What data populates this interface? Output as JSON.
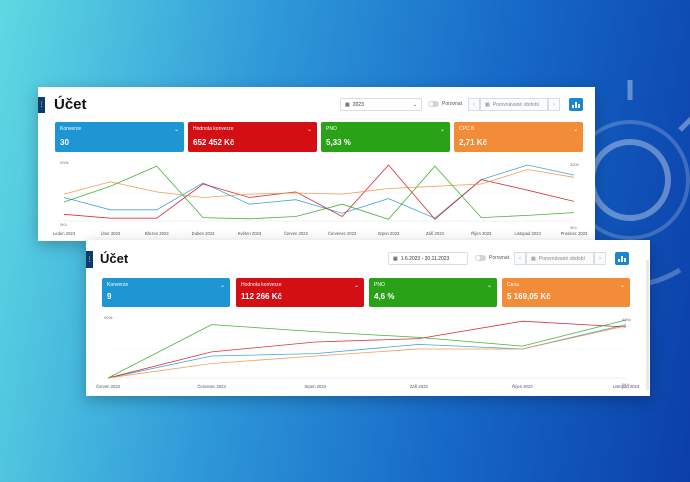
{
  "colors": {
    "blue": "#1d96d3",
    "red": "#d40f14",
    "green": "#2aa218",
    "orange": "#f28c38",
    "accent": "#1c86d6"
  },
  "panel_top": {
    "title": "Účet",
    "period_value": "2023",
    "compare_label": "Porovnat",
    "compare_placeholder": "Porovnávané období",
    "kpis": [
      {
        "label": "Konverze",
        "value": "30",
        "color": "blue"
      },
      {
        "label": "Hodnota konverze",
        "value": "652 452 Kč",
        "color": "red"
      },
      {
        "label": "PNO",
        "value": "5,33 %",
        "color": "green"
      },
      {
        "label": "CPC B",
        "value": "2,71 Kč",
        "color": "orange"
      }
    ],
    "chart_data": {
      "type": "line",
      "categories": [
        "Leden 2023",
        "Únor 2023",
        "Březen 2023",
        "Duben 2023",
        "Květen 2023",
        "Červen 2023",
        "Červenec 2023",
        "Srpen 2023",
        "Září 2023",
        "Říjen 2023",
        "Listopad 2023",
        "Prosinec 2023"
      ],
      "series": [
        {
          "color": "blue",
          "values": [
            0.42,
            0.2,
            0.2,
            0.68,
            0.3,
            0.38,
            0.14,
            0.4,
            0.05,
            0.74,
            1.0,
            0.82
          ]
        },
        {
          "color": "red",
          "values": [
            0.12,
            0.05,
            0.05,
            0.66,
            0.42,
            0.52,
            0.08,
            1.0,
            0.03,
            0.74,
            0.55,
            0.35
          ]
        },
        {
          "color": "green",
          "values": [
            0.34,
            0.62,
            0.98,
            0.06,
            0.04,
            0.08,
            0.3,
            0.03,
            0.98,
            0.06,
            0.1,
            0.15
          ]
        },
        {
          "color": "orange",
          "values": [
            0.48,
            0.7,
            0.52,
            0.42,
            0.48,
            0.5,
            0.48,
            0.58,
            0.62,
            0.66,
            0.92,
            0.78
          ]
        }
      ],
      "y_left_top": "900k",
      "y_left_bottom": "0Kč",
      "y_right_top": "3000",
      "y_right_bottom": "0Kč"
    }
  },
  "panel_bottom": {
    "title": "Účet",
    "period_value": "1.6.2023 - 30.11.2023",
    "compare_label": "Porovnat",
    "compare_placeholder": "Porovnávané období",
    "kpis": [
      {
        "label": "Konverze",
        "value": "9",
        "color": "blue"
      },
      {
        "label": "Hodnota konverze",
        "value": "112 266 Kč",
        "color": "red"
      },
      {
        "label": "PNO",
        "value": "4,6 %",
        "color": "green"
      },
      {
        "label": "Cena",
        "value": "5 169,05 Kč",
        "color": "orange"
      }
    ],
    "chart_data": {
      "type": "line",
      "categories": [
        "Červen 2023",
        "Červenec 2023",
        "Srpen 2023",
        "Září 2023",
        "Říjen 2023",
        "Listopad 2023"
      ],
      "series": [
        {
          "color": "blue",
          "values": [
            0.0,
            0.38,
            0.42,
            0.58,
            0.5,
            0.92
          ]
        },
        {
          "color": "red",
          "values": [
            0.0,
            0.45,
            0.62,
            0.68,
            0.98,
            0.88
          ]
        },
        {
          "color": "green",
          "values": [
            0.0,
            0.92,
            0.8,
            0.7,
            0.55,
            1.0
          ]
        },
        {
          "color": "orange",
          "values": [
            0.0,
            0.25,
            0.38,
            0.5,
            0.5,
            0.9
          ]
        }
      ],
      "y_left_top": "900k",
      "y_right_top": "40Kč",
      "y_right_bottom": "0Kč"
    }
  }
}
